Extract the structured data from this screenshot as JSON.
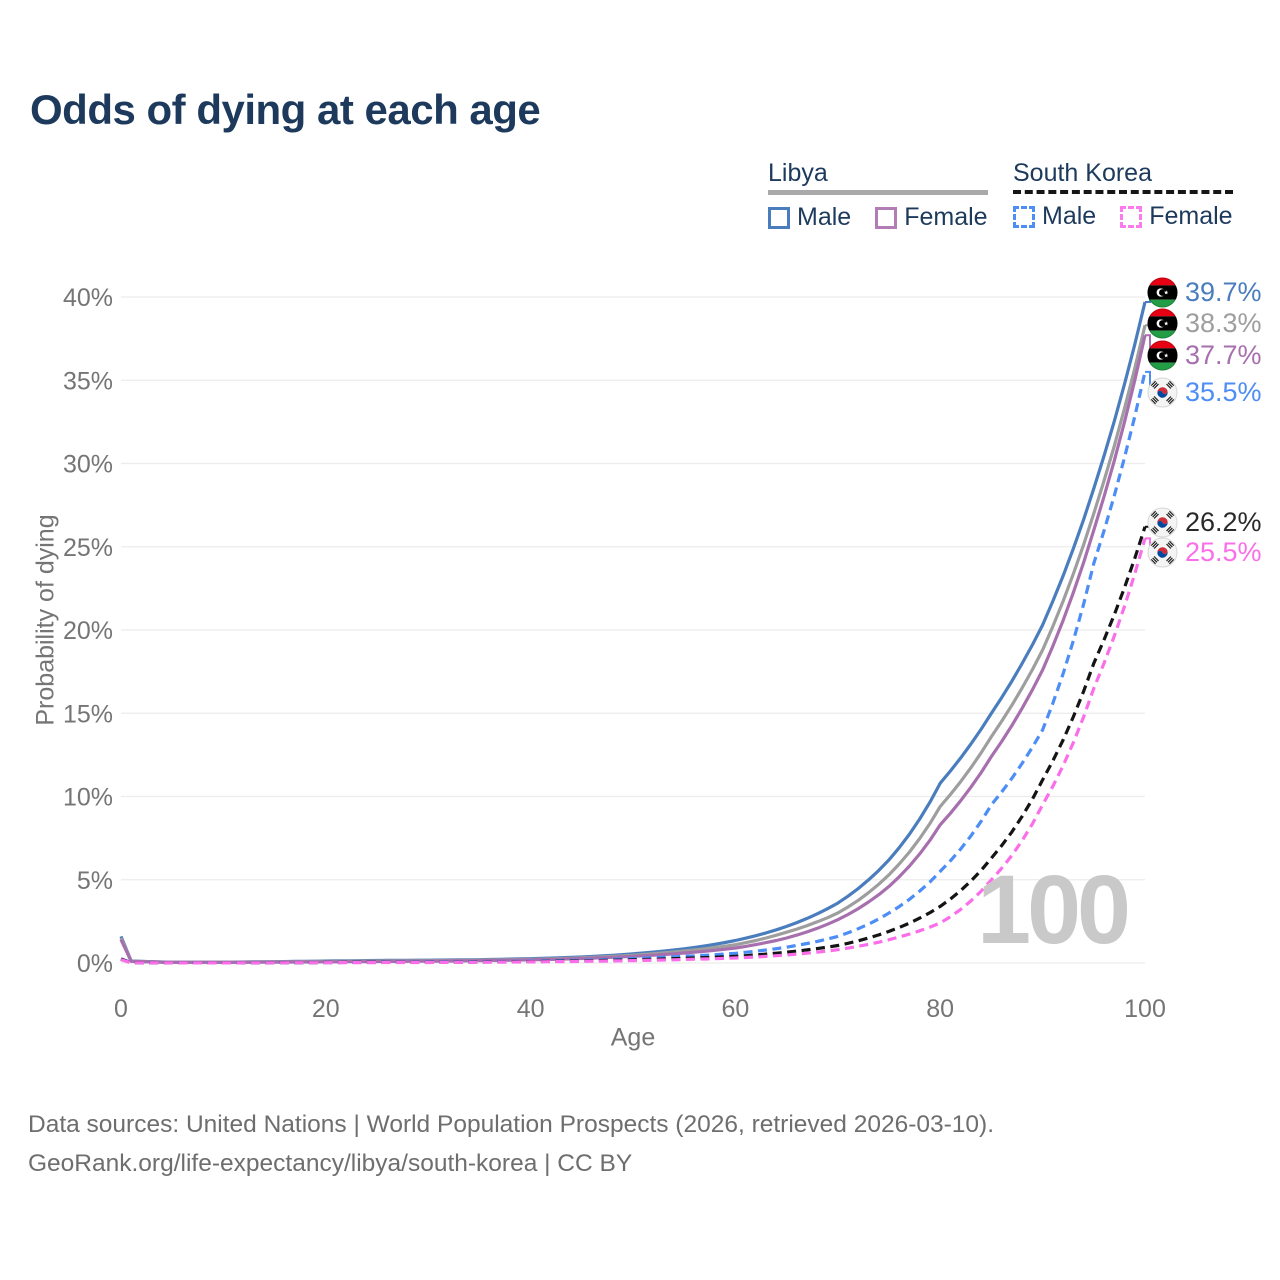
{
  "title": "Odds of dying at each age",
  "legend": {
    "groups": [
      {
        "country": "Libya",
        "line_style": "solid",
        "underline_color": "#a9a9a9",
        "items": [
          {
            "label": "Male",
            "color": "#4a7dbe"
          },
          {
            "label": "Female",
            "color": "#b27cb5"
          }
        ]
      },
      {
        "country": "South Korea",
        "line_style": "dashed",
        "underline_color": "#161616",
        "items": [
          {
            "label": "Male",
            "color": "#4d8df6"
          },
          {
            "label": "Female",
            "color": "#fb7bec"
          }
        ]
      }
    ]
  },
  "chart_data": {
    "type": "line",
    "title": "Odds of dying at each age",
    "xlabel": "Age",
    "ylabel": "Probability of dying",
    "xlim": [
      0,
      100
    ],
    "ylim": [
      0,
      40
    ],
    "x_ticks": [
      0,
      20,
      40,
      60,
      80,
      100
    ],
    "y_ticks": [
      "0%",
      "5%",
      "10%",
      "15%",
      "20%",
      "25%",
      "30%",
      "35%",
      "40%"
    ],
    "grid": "horizontal",
    "age_marker": "100",
    "x": [
      0,
      1,
      5,
      10,
      15,
      20,
      25,
      30,
      35,
      40,
      45,
      50,
      55,
      60,
      65,
      70,
      75,
      80,
      85,
      90,
      95,
      100
    ],
    "series": [
      {
        "name": "Libya Male",
        "color": "#4a7dbe",
        "dash": "solid",
        "values": [
          1.6,
          0.12,
          0.05,
          0.05,
          0.08,
          0.12,
          0.15,
          0.17,
          0.2,
          0.26,
          0.36,
          0.55,
          0.85,
          1.35,
          2.2,
          3.6,
          6.2,
          10.8,
          15.0,
          20.3,
          28.5,
          39.7
        ]
      },
      {
        "name": "Libya Both sexes",
        "color": "#9e9e9e",
        "dash": "solid",
        "values": [
          1.5,
          0.11,
          0.045,
          0.045,
          0.07,
          0.1,
          0.12,
          0.14,
          0.17,
          0.22,
          0.31,
          0.47,
          0.72,
          1.1,
          1.85,
          3.0,
          5.3,
          9.4,
          13.6,
          18.8,
          27.0,
          38.3
        ]
      },
      {
        "name": "Libya Female",
        "color": "#a76fae",
        "dash": "solid",
        "values": [
          1.4,
          0.1,
          0.04,
          0.04,
          0.05,
          0.07,
          0.09,
          0.11,
          0.14,
          0.19,
          0.27,
          0.4,
          0.6,
          0.9,
          1.5,
          2.6,
          4.6,
          8.3,
          12.4,
          17.6,
          26.0,
          37.7
        ]
      },
      {
        "name": "South Korea Male",
        "color": "#4d8df6",
        "dash": "dashed",
        "values": [
          0.25,
          0.02,
          0.01,
          0.01,
          0.02,
          0.04,
          0.05,
          0.06,
          0.08,
          0.11,
          0.17,
          0.27,
          0.4,
          0.58,
          0.95,
          1.6,
          3.0,
          5.5,
          9.5,
          14.0,
          24.0,
          35.5
        ]
      },
      {
        "name": "South Korea Both sexes",
        "color": "#141414",
        "dash": "dashed",
        "values": [
          0.23,
          0.018,
          0.009,
          0.009,
          0.016,
          0.03,
          0.04,
          0.045,
          0.06,
          0.085,
          0.13,
          0.19,
          0.28,
          0.4,
          0.65,
          1.05,
          1.9,
          3.4,
          6.3,
          11.0,
          18.0,
          26.2
        ]
      },
      {
        "name": "South Korea Female",
        "color": "#fb6ee9",
        "dash": "dashed",
        "values": [
          0.2,
          0.015,
          0.008,
          0.008,
          0.013,
          0.02,
          0.026,
          0.032,
          0.045,
          0.065,
          0.1,
          0.145,
          0.21,
          0.3,
          0.48,
          0.8,
          1.4,
          2.4,
          5.0,
          9.5,
          16.5,
          25.5
        ]
      }
    ],
    "end_labels": [
      {
        "value": "39.7%",
        "flag": "libya",
        "color": "#4a7dbe",
        "series": "Libya Male"
      },
      {
        "value": "38.3%",
        "flag": "libya",
        "color": "#9e9e9e",
        "series": "Libya Both sexes"
      },
      {
        "value": "37.7%",
        "flag": "libya",
        "color": "#a76fae",
        "series": "Libya Female"
      },
      {
        "value": "35.5%",
        "flag": "south-korea",
        "color": "#4d8df6",
        "series": "South Korea Male"
      },
      {
        "value": "26.2%",
        "flag": "south-korea",
        "color": "#2a2a2a",
        "series": "South Korea Both sexes"
      },
      {
        "value": "25.5%",
        "flag": "south-korea",
        "color": "#fb6ee9",
        "series": "South Korea Female"
      }
    ]
  },
  "footer": {
    "line1": "Data sources: United Nations | World Population Prospects (2026, retrieved 2026-03-10).",
    "line2": "GeoRank.org/life-expectancy/libya/south-korea | CC BY"
  },
  "colors": {
    "title_text": "#1d3a5c",
    "axis_text": "#757575",
    "gridline": "#ececec",
    "watermark": "#c9c9c9",
    "footer_text": "#6e6e6e"
  }
}
